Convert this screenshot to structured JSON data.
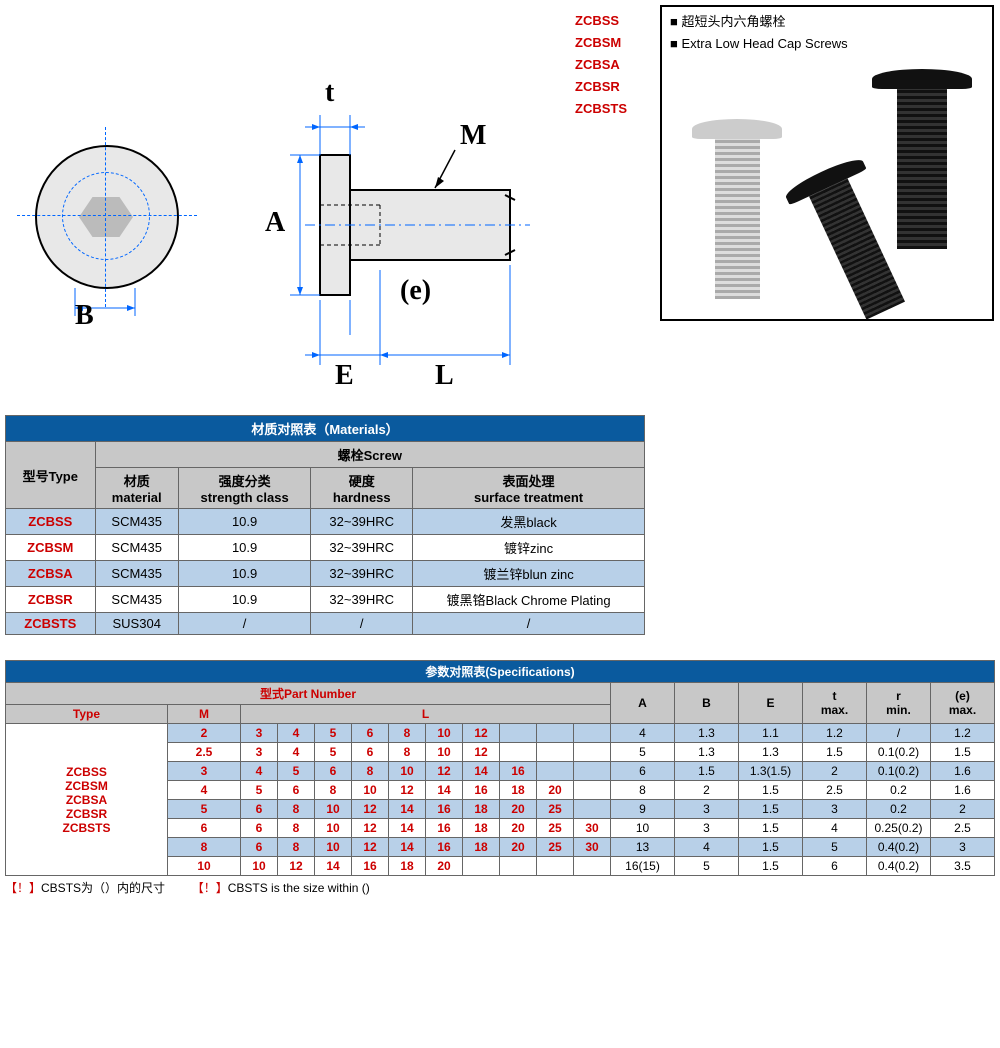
{
  "codes": [
    "ZCBSS",
    "ZCBSM",
    "ZCBSA",
    "ZCBSR",
    "ZCBSTS"
  ],
  "info": {
    "line1": "■ 超短头内六角螺栓",
    "line2": "■ Extra Low Head Cap Screws"
  },
  "diagram_labels": {
    "t": "t",
    "M": "M",
    "A": "A",
    "B": "B",
    "e": "(e)",
    "E": "E",
    "L": "L"
  },
  "materials_table": {
    "title": "材质对照表（Materials）",
    "col_type": "型号Type",
    "col_screw": "螺栓Screw",
    "col_material": "材质\nmaterial",
    "col_strength": "强度分类\nstrength class",
    "col_hardness": "硬度\nhardness",
    "col_surface": "表面处理\nsurface treatment",
    "rows": [
      {
        "type": "ZCBSS",
        "material": "SCM435",
        "strength": "10.9",
        "hardness": "32~39HRC",
        "surface": "发黑black",
        "blue": true
      },
      {
        "type": "ZCBSM",
        "material": "SCM435",
        "strength": "10.9",
        "hardness": "32~39HRC",
        "surface": "镀锌zinc",
        "blue": false
      },
      {
        "type": "ZCBSA",
        "material": "SCM435",
        "strength": "10.9",
        "hardness": "32~39HRC",
        "surface": "镀兰锌blun zinc",
        "blue": true
      },
      {
        "type": "ZCBSR",
        "material": "SCM435",
        "strength": "10.9",
        "hardness": "32~39HRC",
        "surface": "镀黑铬Black Chrome Plating",
        "blue": false
      },
      {
        "type": "ZCBSTS",
        "material": "SUS304",
        "strength": "/",
        "hardness": "/",
        "surface": "/",
        "blue": true
      }
    ]
  },
  "specs_table": {
    "title": "参数对照表(Specifications)",
    "part_number": "型式Part Number",
    "col_type": "Type",
    "col_M": "M",
    "col_L": "L",
    "cols_right": [
      "A",
      "B",
      "E",
      "t\nmax.",
      "r\nmin.",
      "(e)\nmax."
    ],
    "type_list": "ZCBSS\nZCBSM\nZCBSA\nZCBSR\nZCBSTS",
    "rows": [
      {
        "M": "2",
        "L": [
          "3",
          "4",
          "5",
          "6",
          "8",
          "10",
          "12",
          "",
          "",
          ""
        ],
        "vals": [
          "4",
          "1.3",
          "1.1",
          "1.2",
          "/",
          "1.2"
        ],
        "blue": true
      },
      {
        "M": "2.5",
        "L": [
          "3",
          "4",
          "5",
          "6",
          "8",
          "10",
          "12",
          "",
          "",
          ""
        ],
        "vals": [
          "5",
          "1.3",
          "1.3",
          "1.5",
          "0.1(0.2)",
          "1.5"
        ],
        "blue": false
      },
      {
        "M": "3",
        "L": [
          "4",
          "5",
          "6",
          "8",
          "10",
          "12",
          "14",
          "16",
          "",
          ""
        ],
        "vals": [
          "6",
          "1.5",
          "1.3(1.5)",
          "2",
          "0.1(0.2)",
          "1.6"
        ],
        "blue": true
      },
      {
        "M": "4",
        "L": [
          "5",
          "6",
          "8",
          "10",
          "12",
          "14",
          "16",
          "18",
          "20",
          ""
        ],
        "vals": [
          "8",
          "2",
          "1.5",
          "2.5",
          "0.2",
          "1.6"
        ],
        "blue": false
      },
      {
        "M": "5",
        "L": [
          "6",
          "8",
          "10",
          "12",
          "14",
          "16",
          "18",
          "20",
          "25",
          ""
        ],
        "vals": [
          "9",
          "3",
          "1.5",
          "3",
          "0.2",
          "2"
        ],
        "blue": true
      },
      {
        "M": "6",
        "L": [
          "6",
          "8",
          "10",
          "12",
          "14",
          "16",
          "18",
          "20",
          "25",
          "30"
        ],
        "vals": [
          "10",
          "3",
          "1.5",
          "4",
          "0.25(0.2)",
          "2.5"
        ],
        "blue": false
      },
      {
        "M": "8",
        "L": [
          "6",
          "8",
          "10",
          "12",
          "14",
          "16",
          "18",
          "20",
          "25",
          "30"
        ],
        "vals": [
          "13",
          "4",
          "1.5",
          "5",
          "0.4(0.2)",
          "3"
        ],
        "blue": true
      },
      {
        "M": "10",
        "L": [
          "10",
          "12",
          "14",
          "16",
          "18",
          "20",
          "",
          "",
          "",
          ""
        ],
        "vals": [
          "16(15)",
          "5",
          "1.5",
          "6",
          "0.4(0.2)",
          "3.5"
        ],
        "blue": false
      }
    ]
  },
  "footnotes": {
    "left": "【！】CBSTS为（）内的尺寸",
    "right": "【！】CBSTS is the size within ()"
  },
  "colors": {
    "header_blue": "#0a5a9e",
    "row_blue": "#b8d0e8",
    "header_grey": "#c8c8c8",
    "red": "#c00000"
  }
}
